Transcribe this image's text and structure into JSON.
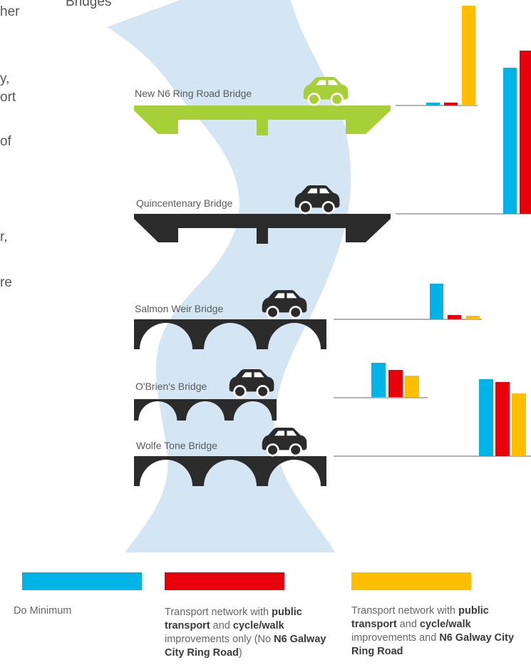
{
  "page": {
    "partial_heading": "Bridges",
    "partial_side_text": [
      "her",
      "y,",
      "ort",
      "of",
      "r,",
      "re"
    ]
  },
  "colors": {
    "river": "#d4e5f3",
    "accent_green": "#a6cf38",
    "bridge_dark": "#2b2b2b",
    "series": [
      "#00b4e8",
      "#e8000b",
      "#ffbe00"
    ]
  },
  "icons": {
    "vehicle": "car-icon"
  },
  "chart_data": {
    "type": "bar",
    "categories": [
      "New N6 Ring Road Bridge",
      "Quincentenary Bridge",
      "Salmon Weir Bridge",
      "O'Brien's Bridge",
      "Wolfe Tone Bridge"
    ],
    "series": [
      {
        "name": "Do Minimum",
        "values": [
          0,
          205,
          50,
          48,
          108
        ]
      },
      {
        "name": "Transport network with public transport and cycle/walk improvements only (No N6 Galway City Ring Road)",
        "values": [
          0,
          229,
          6,
          38,
          104
        ]
      },
      {
        "name": "Transport network with public transport and cycle/walk improvements and N6 Galway City Ring Road",
        "values": [
          140,
          0,
          5,
          30,
          88
        ]
      }
    ],
    "title": "",
    "xlabel": "",
    "ylabel": "",
    "grid": false,
    "legend_position": "bottom"
  },
  "legend": [
    {
      "series_index": 0,
      "parts": [
        {
          "t": "Do Minimum",
          "b": false
        }
      ]
    },
    {
      "series_index": 1,
      "parts": [
        {
          "t": "Transport network with ",
          "b": false
        },
        {
          "t": "public transport",
          "b": true
        },
        {
          "t": " and ",
          "b": false
        },
        {
          "t": "cycle/walk",
          "b": true
        },
        {
          "t": " improvements only (No ",
          "b": false
        },
        {
          "t": "N6 Galway City Ring Road",
          "b": true
        },
        {
          "t": ")",
          "b": false
        }
      ]
    },
    {
      "series_index": 2,
      "parts": [
        {
          "t": "Transport network with ",
          "b": false
        },
        {
          "t": "public transport",
          "b": true
        },
        {
          "t": " and ",
          "b": false
        },
        {
          "t": "cycle/walk",
          "b": true
        },
        {
          "t": " improvements and ",
          "b": false
        },
        {
          "t": "N6 Galway City Ring Road",
          "b": true
        }
      ]
    }
  ]
}
